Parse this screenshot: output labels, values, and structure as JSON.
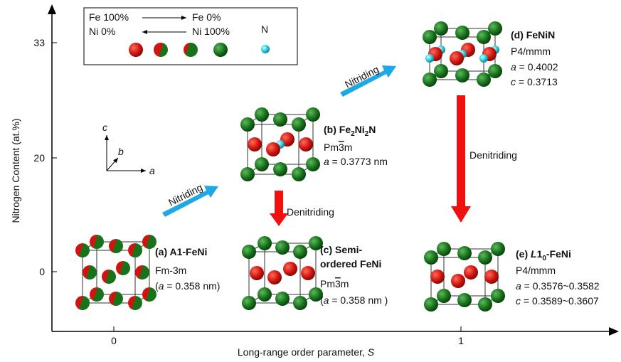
{
  "axes": {
    "y_label": "Nitrogen Content (at.%)",
    "y_ticks": [
      33,
      20,
      0
    ],
    "x_label": "Long-range order parameter, ",
    "x_label_var": "S",
    "x_ticks": [
      0,
      1
    ]
  },
  "legend": {
    "fe_left": "Fe 100%",
    "fe_right": "Fe 0%",
    "ni_left": "Ni 0%",
    "ni_right": "Ni 100%",
    "n": "N"
  },
  "process": {
    "nitriding": [
      "Nitriding",
      "Nitriding"
    ],
    "denitriding": [
      "Denitriding",
      "Denitriding"
    ]
  },
  "lattice_axes": [
    "c",
    "b",
    "a"
  ],
  "structures": {
    "a": {
      "label": "(a) A1-FeNi",
      "space_group": "Fm-3m",
      "param": [
        "(",
        "a",
        " = 0.358 nm)"
      ]
    },
    "b": {
      "label": [
        "(b) Fe",
        "2",
        "Ni",
        "2",
        "N"
      ],
      "space_group": [
        "Pm",
        "3",
        "m"
      ],
      "param": [
        "a",
        " = 0.3773 nm"
      ]
    },
    "c": {
      "label": [
        "(c) Semi-",
        "ordered FeNi"
      ],
      "space_group": [
        "Pm",
        "3",
        "m"
      ],
      "param": [
        "(",
        "a",
        " = 0.358 nm )"
      ]
    },
    "d": {
      "label": "(d) FeNiN",
      "space_group": "P4/mmm",
      "params": [
        [
          "a",
          " = 0.4002"
        ],
        [
          "c",
          " = 0.3713"
        ]
      ]
    },
    "e": {
      "label": [
        "(e) ",
        "L",
        "1",
        "0",
        "-FeNi"
      ],
      "space_group": "P4/mmm",
      "params": [
        [
          "a",
          " = 0.3576~0.3582"
        ],
        [
          "c",
          " = 0.3589~0.3607"
        ]
      ]
    }
  }
}
